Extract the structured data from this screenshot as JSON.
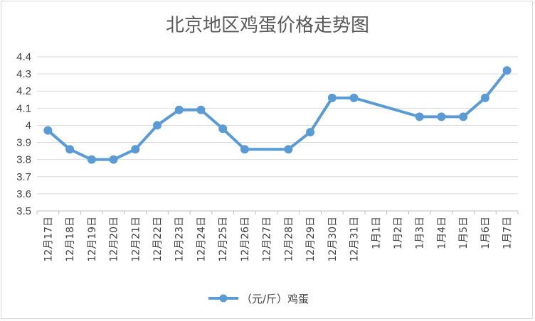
{
  "chart_data": {
    "type": "line",
    "title": "北京地区鸡蛋价格走势图",
    "xlabel": "",
    "ylabel": "",
    "categories": [
      "12月17日",
      "12月18日",
      "12月19日",
      "12月20日",
      "12月21日",
      "12月22日",
      "12月23日",
      "12月24日",
      "12月25日",
      "12月26日",
      "12月27日",
      "12月28日",
      "12月29日",
      "12月30日",
      "12月31日",
      "1月1日",
      "1月2日",
      "1月3日",
      "1月4日",
      "1月5日",
      "1月6日",
      "1月7日"
    ],
    "series": [
      {
        "name": "（元/斤）鸡蛋",
        "values": [
          3.97,
          3.86,
          3.8,
          3.8,
          3.86,
          4.0,
          4.09,
          4.09,
          3.98,
          3.86,
          null,
          3.86,
          3.96,
          4.16,
          4.16,
          null,
          null,
          4.05,
          4.05,
          4.05,
          4.16,
          4.32
        ]
      }
    ],
    "yticks": [
      "3.5",
      "3.6",
      "3.7",
      "3.8",
      "3.9",
      "4",
      "4.1",
      "4.2",
      "4.3",
      "4.4"
    ],
    "ylim": [
      3.5,
      4.4
    ],
    "grid": true,
    "legend": "bottom",
    "colors": {
      "series": "#5b9bd5",
      "grid": "#d9d9d9",
      "axis": "#bfbfbf"
    }
  }
}
